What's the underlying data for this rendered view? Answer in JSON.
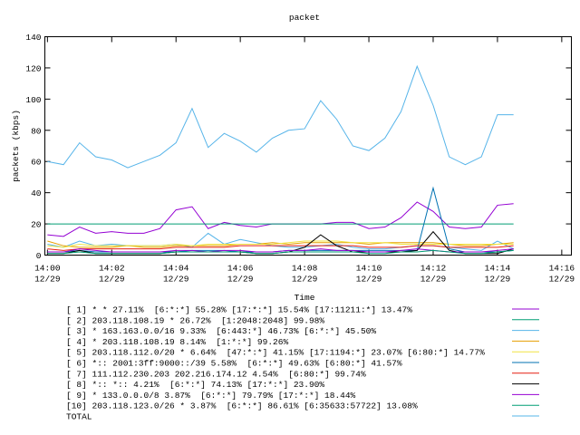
{
  "chart_data": {
    "type": "line",
    "title": "packet",
    "x_label": "Time",
    "y_label": "packets (kbps)",
    "x": [
      0,
      0.5,
      1,
      1.5,
      2,
      2.5,
      3,
      3.5,
      4,
      4.5,
      5,
      5.5,
      6,
      6.5,
      7,
      7.5,
      8,
      8.5,
      9,
      9.5,
      10,
      10.5,
      11,
      11.5,
      12,
      12.5,
      13,
      13.5,
      14,
      14.5
    ],
    "xlim": [
      -0.08,
      16.3
    ],
    "xticks": [
      {
        "value": 0,
        "label": "14:00\n12/29"
      },
      {
        "value": 2,
        "label": "14:02\n12/29"
      },
      {
        "value": 4,
        "label": "14:04\n12/29"
      },
      {
        "value": 6,
        "label": "14:06\n12/29"
      },
      {
        "value": 8,
        "label": "14:08\n12/29"
      },
      {
        "value": 10,
        "label": "14:10\n12/29"
      },
      {
        "value": 12,
        "label": "14:12\n12/29"
      },
      {
        "value": 14,
        "label": "14:14\n12/29"
      },
      {
        "value": 16,
        "label": "14:16\n12/29"
      }
    ],
    "ylim": [
      0,
      140
    ],
    "yticks": [
      0,
      20,
      40,
      60,
      80,
      100,
      120,
      140
    ],
    "series": [
      {
        "name": "[ 1] * * 27.11%  [6:*:*] 55.28% [17:*:*] 15.54% [17:11211:*] 13.47%",
        "color": "#9400d3",
        "values": [
          13,
          12,
          18,
          14,
          15,
          14,
          14,
          17,
          29,
          31,
          17,
          21,
          19,
          18,
          20,
          20,
          20,
          20,
          21,
          21,
          17,
          18,
          24,
          34,
          28,
          18,
          17,
          18,
          32,
          33
        ]
      },
      {
        "name": "[ 2] 203.118.108.19 * 26.72%  [1:2048:2048] 99.98%",
        "color": "#009e73",
        "values": [
          20,
          20,
          20,
          20,
          20,
          20,
          20,
          20,
          20,
          20,
          20,
          20,
          20,
          20,
          20,
          20,
          20,
          20,
          20,
          20,
          20,
          20,
          20,
          20,
          20,
          20,
          20,
          20,
          20,
          20
        ]
      },
      {
        "name": "[ 3] * 163.163.0.0/16 9.33%  [6:443:*] 46.73% [6:*:*] 45.50%",
        "color": "#56b4e9",
        "values": [
          7,
          5,
          9,
          6,
          7,
          6,
          6,
          6,
          7,
          5,
          14,
          7,
          10,
          8,
          6,
          5,
          5,
          6,
          7,
          5,
          4,
          4,
          5,
          6,
          6,
          5,
          4,
          3,
          9,
          4
        ]
      },
      {
        "name": "[ 4] * 203.118.108.19 8.14%  [1:*:*] 99.26%",
        "color": "#e69f00",
        "values": [
          9,
          6,
          5,
          5,
          5,
          6,
          5,
          5,
          6,
          6,
          6,
          6,
          7,
          7,
          8,
          7,
          8,
          8,
          8,
          8,
          7,
          8,
          8,
          8,
          8,
          7,
          6,
          6,
          7,
          8
        ]
      },
      {
        "name": "[ 5] 203.118.112.0/20 * 6.64%  [47:*:*] 41.15% [17:1194:*] 23.07% [6:80:*] 14.77%",
        "color": "#f0e442",
        "values": [
          6,
          5,
          7,
          6,
          6,
          6,
          6,
          6,
          7,
          6,
          7,
          7,
          7,
          7,
          7,
          8,
          9,
          9,
          9,
          8,
          8,
          8,
          7,
          7,
          7,
          7,
          7,
          7,
          7,
          7
        ]
      },
      {
        "name": "[ 6] *:: 2001:3ff:9000::/39 5.58%  [6:*:*] 49.63% [6:80:*] 41.57%",
        "color": "#0072b2",
        "values": [
          2,
          2,
          3,
          2,
          2,
          2,
          2,
          2,
          2,
          3,
          3,
          3,
          2,
          2,
          2,
          3,
          3,
          3,
          3,
          3,
          3,
          3,
          3,
          3,
          43,
          4,
          2,
          2,
          2,
          3
        ]
      },
      {
        "name": "[ 7] 111.112.230.203 202.216.174.12 4.54%  [6:80:*] 99.74%",
        "color": "#e51e10",
        "values": [
          4,
          3,
          4,
          4,
          4,
          4,
          4,
          4,
          5,
          5,
          5,
          5,
          6,
          6,
          6,
          6,
          6,
          6,
          6,
          6,
          5,
          5,
          5,
          6,
          6,
          5,
          5,
          5,
          5,
          6
        ]
      },
      {
        "name": "[ 8] *:: *:: 4.21%  [6:*:*] 74.13% [17:*:*] 23.90%",
        "color": "#000000",
        "values": [
          1,
          1,
          3,
          1,
          1,
          1,
          1,
          1,
          2,
          2,
          2,
          2,
          2,
          1,
          1,
          2,
          5,
          13,
          6,
          2,
          2,
          2,
          2,
          3,
          15,
          3,
          1,
          1,
          1,
          4
        ]
      },
      {
        "name": "[ 9] * 133.0.0.0/8 3.87%  [6:*:*] 79.79% [17:*:*] 18.44%",
        "color": "#9400d3",
        "values": [
          2,
          2,
          4,
          3,
          2,
          2,
          2,
          2,
          3,
          3,
          2,
          3,
          3,
          2,
          2,
          3,
          3,
          4,
          3,
          3,
          2,
          2,
          3,
          4,
          3,
          2,
          2,
          2,
          3,
          4
        ]
      },
      {
        "name": "[10] 203.118.123.0/26 * 3.87%  [6:*:*] 86.61% [6:35633:57722] 13.08%",
        "color": "#009e73",
        "values": [
          1,
          1,
          2,
          1,
          1,
          1,
          1,
          1,
          2,
          2,
          2,
          2,
          2,
          1,
          1,
          2,
          2,
          2,
          2,
          2,
          1,
          1,
          2,
          2,
          3,
          2,
          1,
          1,
          2,
          3
        ]
      },
      {
        "name": "TOTAL",
        "color": "#56b4e9",
        "values": [
          60,
          58,
          72,
          63,
          61,
          56,
          60,
          64,
          72,
          94,
          69,
          78,
          73,
          66,
          75,
          80,
          81,
          99,
          87,
          70,
          67,
          75,
          92,
          121,
          96,
          63,
          58,
          63,
          90,
          90
        ]
      }
    ]
  }
}
